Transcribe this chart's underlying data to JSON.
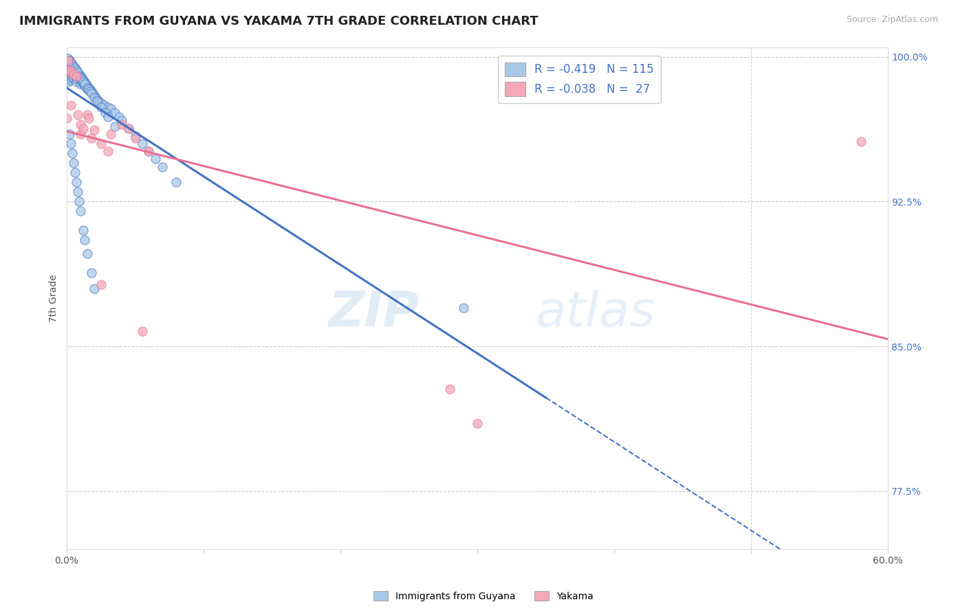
{
  "title": "IMMIGRANTS FROM GUYANA VS YAKAMA 7TH GRADE CORRELATION CHART",
  "source_text": "Source: ZipAtlas.com",
  "ylabel": "7th Grade",
  "x_min": 0.0,
  "x_max": 0.6,
  "y_min": 0.745,
  "y_max": 1.005,
  "yticks": [
    0.775,
    0.85,
    0.925,
    1.0
  ],
  "ytick_labels": [
    "77.5%",
    "85.0%",
    "92.5%",
    "100.0%"
  ],
  "xticks": [
    0.0,
    0.1,
    0.2,
    0.3,
    0.4,
    0.5,
    0.6
  ],
  "xtick_labels": [
    "0.0%",
    "",
    "",
    "",
    "",
    "",
    "60.0%"
  ],
  "blue_r": "-0.419",
  "blue_n": "115",
  "pink_r": "-0.038",
  "pink_n": "27",
  "blue_color": "#A8C8E8",
  "pink_color": "#F4A8B8",
  "blue_line_color": "#4472C4",
  "pink_line_color": "#E87090",
  "watermark_zip": "ZIP",
  "watermark_atlas": "atlas",
  "blue_scatter_x": [
    0.001,
    0.001,
    0.001,
    0.001,
    0.001,
    0.002,
    0.002,
    0.002,
    0.002,
    0.002,
    0.002,
    0.003,
    0.003,
    0.003,
    0.003,
    0.003,
    0.004,
    0.004,
    0.004,
    0.004,
    0.005,
    0.005,
    0.005,
    0.005,
    0.006,
    0.006,
    0.006,
    0.007,
    0.007,
    0.007,
    0.007,
    0.008,
    0.008,
    0.008,
    0.009,
    0.009,
    0.01,
    0.01,
    0.01,
    0.011,
    0.011,
    0.012,
    0.012,
    0.013,
    0.013,
    0.014,
    0.015,
    0.015,
    0.016,
    0.017,
    0.018,
    0.019,
    0.02,
    0.021,
    0.022,
    0.023,
    0.025,
    0.027,
    0.03,
    0.032,
    0.035,
    0.038,
    0.04,
    0.045,
    0.05,
    0.055,
    0.06,
    0.065,
    0.07,
    0.08,
    0.001,
    0.001,
    0.002,
    0.002,
    0.003,
    0.003,
    0.004,
    0.004,
    0.005,
    0.005,
    0.006,
    0.006,
    0.007,
    0.007,
    0.008,
    0.009,
    0.01,
    0.011,
    0.012,
    0.013,
    0.015,
    0.016,
    0.017,
    0.018,
    0.02,
    0.022,
    0.025,
    0.028,
    0.03,
    0.035,
    0.002,
    0.003,
    0.004,
    0.005,
    0.006,
    0.007,
    0.008,
    0.009,
    0.01,
    0.012,
    0.013,
    0.015,
    0.018,
    0.02,
    0.29
  ],
  "blue_scatter_y": [
    0.995,
    0.993,
    0.991,
    0.989,
    0.987,
    0.998,
    0.996,
    0.994,
    0.992,
    0.99,
    0.988,
    0.997,
    0.995,
    0.993,
    0.991,
    0.989,
    0.996,
    0.994,
    0.992,
    0.99,
    0.995,
    0.993,
    0.991,
    0.989,
    0.994,
    0.992,
    0.99,
    0.993,
    0.991,
    0.989,
    0.987,
    0.992,
    0.99,
    0.988,
    0.991,
    0.989,
    0.99,
    0.988,
    0.986,
    0.989,
    0.987,
    0.988,
    0.986,
    0.987,
    0.985,
    0.986,
    0.985,
    0.983,
    0.984,
    0.983,
    0.982,
    0.981,
    0.98,
    0.979,
    0.978,
    0.977,
    0.976,
    0.975,
    0.974,
    0.973,
    0.971,
    0.969,
    0.967,
    0.963,
    0.959,
    0.955,
    0.951,
    0.947,
    0.943,
    0.935,
    0.999,
    0.997,
    0.998,
    0.996,
    0.997,
    0.995,
    0.996,
    0.994,
    0.995,
    0.993,
    0.994,
    0.992,
    0.993,
    0.991,
    0.992,
    0.99,
    0.989,
    0.988,
    0.987,
    0.986,
    0.984,
    0.983,
    0.982,
    0.981,
    0.979,
    0.977,
    0.974,
    0.971,
    0.969,
    0.964,
    0.96,
    0.955,
    0.95,
    0.945,
    0.94,
    0.935,
    0.93,
    0.925,
    0.92,
    0.91,
    0.905,
    0.898,
    0.888,
    0.88,
    0.87
  ],
  "pink_scatter_x": [
    0.001,
    0.002,
    0.003,
    0.005,
    0.007,
    0.01,
    0.01,
    0.012,
    0.015,
    0.016,
    0.018,
    0.02,
    0.025,
    0.03,
    0.032,
    0.04,
    0.045,
    0.05,
    0.06,
    0.0,
    0.003,
    0.008,
    0.025,
    0.055,
    0.28,
    0.3,
    0.58
  ],
  "pink_scatter_y": [
    0.998,
    0.993,
    0.992,
    0.991,
    0.99,
    0.96,
    0.965,
    0.963,
    0.97,
    0.968,
    0.958,
    0.962,
    0.955,
    0.951,
    0.96,
    0.965,
    0.963,
    0.958,
    0.951,
    0.968,
    0.975,
    0.97,
    0.882,
    0.858,
    0.828,
    0.81,
    0.956
  ]
}
